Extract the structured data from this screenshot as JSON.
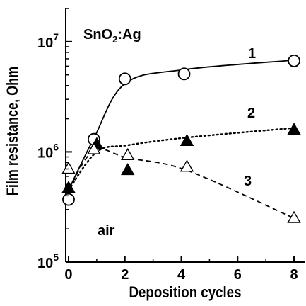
{
  "chart_data": {
    "type": "scatter",
    "title": "",
    "xlabel": "Deposition cycles",
    "ylabel": "Film resistance, Ohm",
    "xlim": [
      -0.1,
      8.4
    ],
    "ylim": [
      100000,
      20000000
    ],
    "y_scale": "log",
    "x_ticks": [
      0,
      2,
      4,
      6,
      8
    ],
    "x_tick_labels": [
      "0",
      "2",
      "4",
      "6",
      "8"
    ],
    "y_ticks": [
      100000,
      1000000,
      10000000
    ],
    "y_tick_labels": [
      {
        "base": "10",
        "exp": "5"
      },
      {
        "base": "10",
        "exp": "6"
      },
      {
        "base": "10",
        "exp": "7"
      }
    ],
    "grid": false,
    "series": [
      {
        "name": "1",
        "marker": "open-circle",
        "line_style": "solid",
        "x": [
          0,
          0.9,
          2,
          4.1,
          8
        ],
        "y": [
          370000,
          1300000,
          4600000,
          5100000,
          6700000
        ],
        "fit_y": [
          450000,
          1330000,
          4160000,
          5580000,
          6800000
        ]
      },
      {
        "name": "2",
        "marker": "filled-triangle",
        "line_style": "dotted",
        "x": [
          0,
          1,
          2.1,
          4.2,
          8
        ],
        "y": [
          470000,
          1170000,
          680000,
          1250000,
          1580000
        ],
        "fit_y": [
          450000,
          1000000,
          1150000,
          1350000,
          1650000
        ]
      },
      {
        "name": "3",
        "marker": "open-triangle",
        "line_style": "dashed",
        "x": [
          0,
          0.9,
          2.1,
          4.2,
          8
        ],
        "y": [
          700000,
          1050000,
          930000,
          730000,
          250000
        ],
        "fit_y": [
          450000,
          1030000,
          880000,
          680000,
          250000
        ]
      }
    ],
    "annotations": [
      {
        "text": "air"
      },
      {
        "text": "SnO",
        "sub": "2",
        "tail": ":Ag"
      }
    ]
  }
}
